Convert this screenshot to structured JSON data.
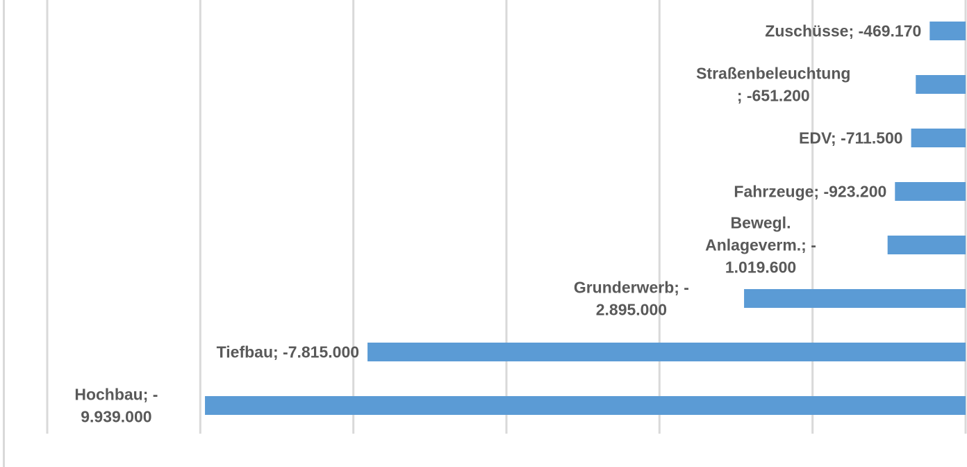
{
  "chart_data": {
    "type": "bar",
    "orientation": "horizontal",
    "categories": [
      "Hochbau",
      "Tiefbau",
      "Grunderwerb",
      "Bewegl. Anlageverm.",
      "Fahrzeuge",
      "EDV",
      "Straßenbeleuchtung",
      "Zuschüsse"
    ],
    "values": [
      -9939000,
      -7815000,
      -2895000,
      -1019600,
      -923200,
      -711500,
      -651200,
      -469170
    ],
    "data_labels": [
      [
        "Hochbau; -",
        "9.939.000"
      ],
      [
        "Tiefbau; -7.815.000"
      ],
      [
        "Grunderwerb; -",
        "2.895.000"
      ],
      [
        "Bewegl.",
        "Anlageverm.; -",
        "1.019.600"
      ],
      [
        "Fahrzeuge; -923.200"
      ],
      [
        "EDV; -711.500"
      ],
      [
        "Straßenbeleuchtung",
        "; -651.200"
      ],
      [
        "Zuschüsse; -469.170"
      ]
    ],
    "xlim": [
      -12000000,
      0
    ],
    "grid_step": 2000000,
    "grid": true,
    "legend": "none",
    "title": "",
    "xlabel": "",
    "ylabel": "",
    "colors": {
      "bar": "#5b9bd5",
      "grid": "#d9d9d9",
      "label": "#595959"
    }
  }
}
